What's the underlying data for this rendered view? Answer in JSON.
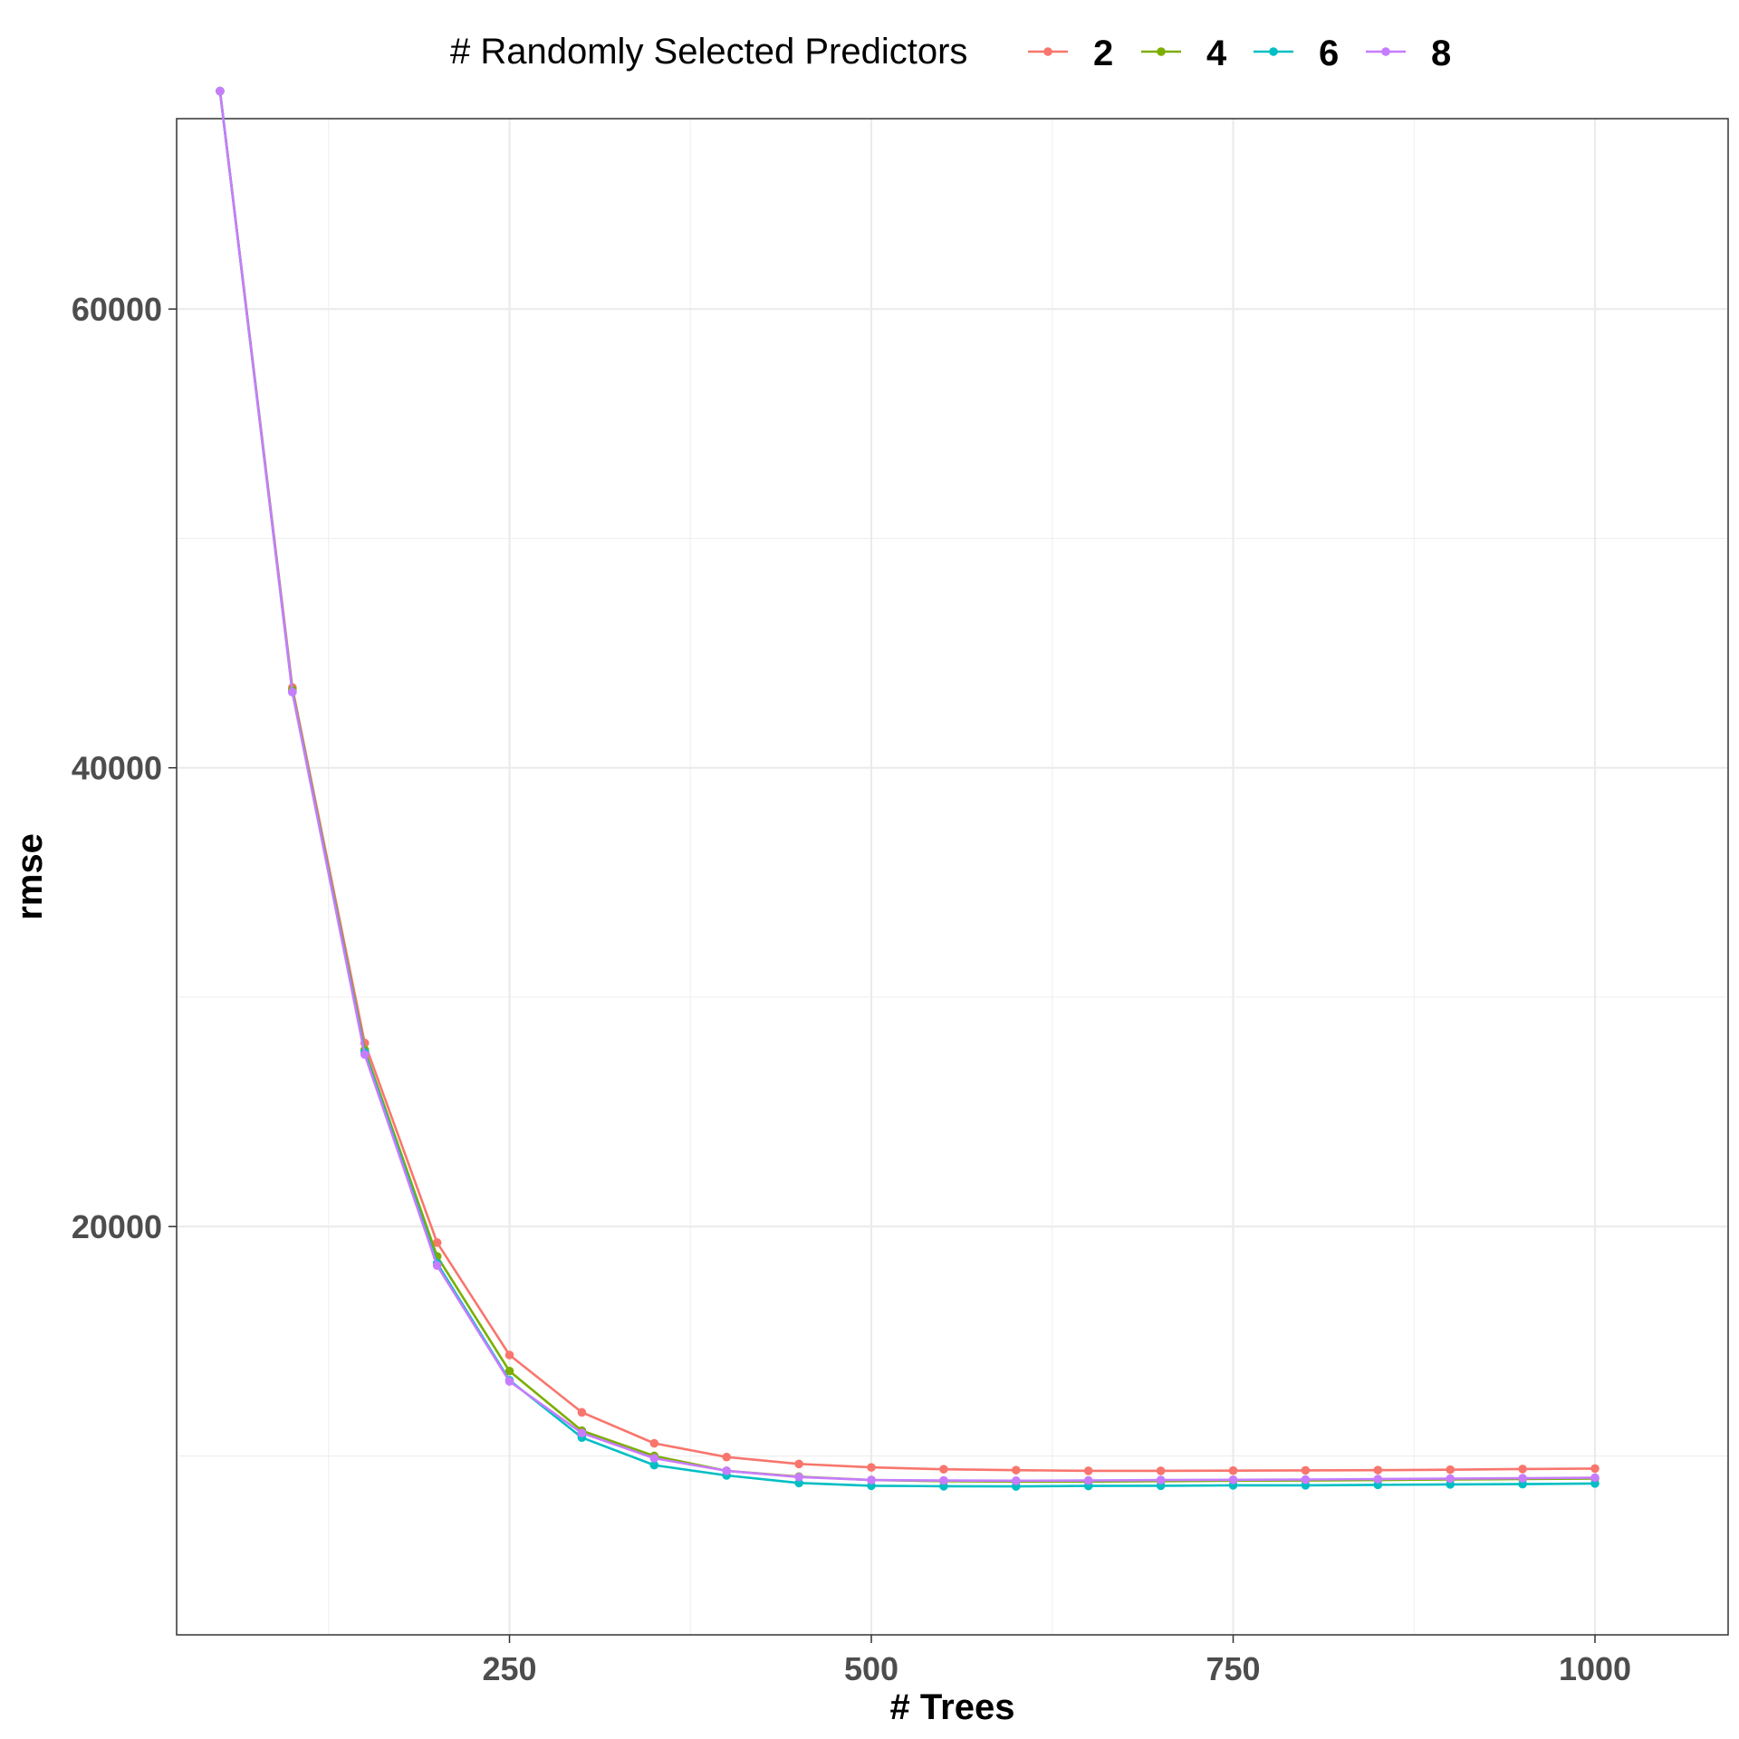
{
  "chart_data": {
    "type": "line",
    "title": "",
    "xlabel": "# Trees",
    "ylabel": "rmse",
    "xlim": [
      20,
      1092
    ],
    "ylim": [
      2200,
      68300
    ],
    "x_ticks": [
      250,
      500,
      750,
      1000
    ],
    "y_ticks": [
      20000,
      40000,
      60000
    ],
    "grid": true,
    "legend": {
      "title": "# Randomly Selected Predictors",
      "position": "top"
    },
    "x": [
      50,
      100,
      150,
      200,
      250,
      300,
      350,
      400,
      450,
      500,
      550,
      600,
      650,
      700,
      750,
      800,
      850,
      900,
      950,
      1000
    ],
    "series": [
      {
        "name": "2",
        "color": "#F8766D",
        "values": [
          69500,
          43500,
          28000,
          19300,
          14400,
          11900,
          10550,
          9950,
          9650,
          9500,
          9420,
          9380,
          9350,
          9350,
          9360,
          9370,
          9380,
          9400,
          9430,
          9450
        ]
      },
      {
        "name": "4",
        "color": "#7CAE00",
        "values": [
          69500,
          43400,
          27700,
          18700,
          13700,
          11100,
          10000,
          9350,
          9100,
          8950,
          8900,
          8880,
          8880,
          8900,
          8920,
          8930,
          8950,
          8970,
          8990,
          9010
        ]
      },
      {
        "name": "6",
        "color": "#00BFC4",
        "values": [
          69500,
          43300,
          27600,
          18400,
          13300,
          10800,
          9600,
          9150,
          8820,
          8700,
          8680,
          8670,
          8690,
          8700,
          8720,
          8720,
          8740,
          8760,
          8770,
          8800
        ]
      },
      {
        "name": "8",
        "color": "#C77CFF",
        "values": [
          69500,
          43300,
          27500,
          18300,
          13250,
          11000,
          9900,
          9350,
          9080,
          8950,
          8930,
          8920,
          8930,
          8950,
          8960,
          8970,
          8990,
          9010,
          9030,
          9050
        ]
      }
    ]
  }
}
